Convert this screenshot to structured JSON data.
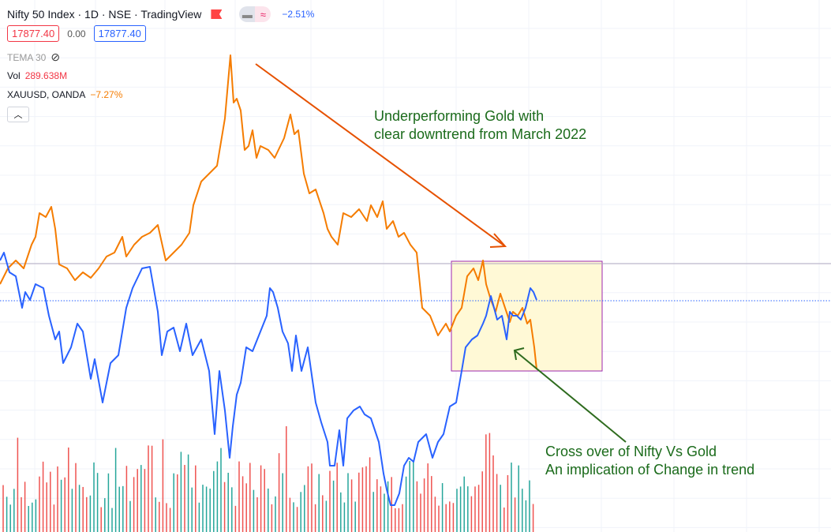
{
  "header": {
    "title": "Nifty 50 Index · 1D · NSE · TradingView",
    "change": "−2.51%",
    "sell_price": "17877.40",
    "spread": "0.00",
    "buy_price": "17877.40"
  },
  "indicators": {
    "tema": "TEMA 30",
    "vol_label": "Vol",
    "vol_value": "289.638M",
    "compare_label": "XAUUSD, OANDA",
    "compare_value": "−7.27%"
  },
  "annotations": {
    "gold_line1": "Underperforming Gold with",
    "gold_line2": "clear downtrend from March 2022",
    "cross_line1": "Cross over of Nifty Vs Gold",
    "cross_line2": "An implication of Change in trend"
  },
  "colors": {
    "nifty": "#2962ff",
    "gold": "#f57c00",
    "vol_up": "#26a69a",
    "vol_down": "#ef5350",
    "annotation": "#1b6b1b",
    "arrow": "#e65100",
    "box_fill": "#fff9d6",
    "box_border": "#9c27b0"
  },
  "chart_data": {
    "type": "line",
    "note": "values are relative change vs last close reference (dotted line = 0)",
    "series": [
      {
        "name": "XAUUSD, OANDA",
        "points": [
          [
            0,
            21
          ],
          [
            10,
            41
          ],
          [
            20,
            51
          ],
          [
            30,
            41
          ],
          [
            40,
            71
          ],
          [
            45,
            81
          ],
          [
            50,
            111
          ],
          [
            58,
            106
          ],
          [
            65,
            119
          ],
          [
            70,
            91
          ],
          [
            75,
            46
          ],
          [
            85,
            41
          ],
          [
            95,
            26
          ],
          [
            105,
            36
          ],
          [
            115,
            29
          ],
          [
            125,
            41
          ],
          [
            135,
            56
          ],
          [
            145,
            61
          ],
          [
            155,
            81
          ],
          [
            160,
            56
          ],
          [
            170,
            71
          ],
          [
            180,
            81
          ],
          [
            190,
            86
          ],
          [
            200,
            96
          ],
          [
            210,
            51
          ],
          [
            220,
            61
          ],
          [
            230,
            71
          ],
          [
            240,
            86
          ],
          [
            245,
            121
          ],
          [
            255,
            151
          ],
          [
            265,
            161
          ],
          [
            275,
            171
          ],
          [
            285,
            231
          ],
          [
            292,
            311
          ],
          [
            296,
            251
          ],
          [
            300,
            256
          ],
          [
            305,
            241
          ],
          [
            310,
            191
          ],
          [
            315,
            196
          ],
          [
            320,
            216
          ],
          [
            325,
            181
          ],
          [
            330,
            196
          ],
          [
            340,
            191
          ],
          [
            348,
            181
          ],
          [
            360,
            206
          ],
          [
            368,
            236
          ],
          [
            373,
            211
          ],
          [
            378,
            216
          ],
          [
            385,
            161
          ],
          [
            392,
            136
          ],
          [
            400,
            141
          ],
          [
            410,
            111
          ],
          [
            415,
            91
          ],
          [
            420,
            81
          ],
          [
            428,
            71
          ],
          [
            435,
            111
          ],
          [
            445,
            106
          ],
          [
            455,
            116
          ],
          [
            465,
            101
          ],
          [
            470,
            121
          ],
          [
            478,
            106
          ],
          [
            485,
            126
          ],
          [
            490,
            91
          ],
          [
            498,
            101
          ],
          [
            505,
            81
          ],
          [
            512,
            86
          ],
          [
            520,
            71
          ],
          [
            528,
            61
          ],
          [
            535,
            -9
          ],
          [
            545,
            -19
          ],
          [
            555,
            -44
          ],
          [
            565,
            -29
          ],
          [
            570,
            -39
          ],
          [
            578,
            -19
          ],
          [
            585,
            -9
          ],
          [
            592,
            31
          ],
          [
            600,
            41
          ],
          [
            606,
            26
          ],
          [
            612,
            51
          ],
          [
            616,
            21
          ],
          [
            622,
            1
          ],
          [
            628,
            -14
          ],
          [
            634,
            9
          ],
          [
            640,
            -9
          ],
          [
            646,
            -27
          ],
          [
            650,
            -14
          ],
          [
            656,
            -19
          ],
          [
            662,
            -9
          ],
          [
            668,
            -29
          ],
          [
            672,
            -24
          ],
          [
            677,
            -59
          ],
          [
            680,
            -87
          ]
        ]
      },
      {
        "name": "Nifty 50 Index",
        "points": [
          [
            0,
            51
          ],
          [
            5,
            61
          ],
          [
            12,
            36
          ],
          [
            20,
            31
          ],
          [
            28,
            -9
          ],
          [
            32,
            11
          ],
          [
            38,
            1
          ],
          [
            45,
            21
          ],
          [
            55,
            16
          ],
          [
            62,
            -19
          ],
          [
            70,
            -49
          ],
          [
            75,
            -39
          ],
          [
            80,
            -79
          ],
          [
            90,
            -59
          ],
          [
            98,
            -29
          ],
          [
            105,
            -39
          ],
          [
            115,
            -99
          ],
          [
            120,
            -74
          ],
          [
            130,
            -129
          ],
          [
            140,
            -79
          ],
          [
            150,
            -69
          ],
          [
            160,
            -9
          ],
          [
            168,
            16
          ],
          [
            180,
            41
          ],
          [
            190,
            43
          ],
          [
            200,
            -14
          ],
          [
            205,
            -69
          ],
          [
            212,
            -39
          ],
          [
            220,
            -34
          ],
          [
            228,
            -64
          ],
          [
            236,
            -29
          ],
          [
            244,
            -69
          ],
          [
            255,
            -49
          ],
          [
            265,
            -89
          ],
          [
            272,
            -169
          ],
          [
            278,
            -89
          ],
          [
            285,
            -139
          ],
          [
            291,
            -199
          ],
          [
            295,
            -159
          ],
          [
            300,
            -119
          ],
          [
            305,
            -104
          ],
          [
            312,
            -59
          ],
          [
            320,
            -64
          ],
          [
            330,
            -39
          ],
          [
            338,
            -19
          ],
          [
            342,
            16
          ],
          [
            346,
            11
          ],
          [
            352,
            -9
          ],
          [
            358,
            -39
          ],
          [
            365,
            -54
          ],
          [
            370,
            -89
          ],
          [
            375,
            -44
          ],
          [
            382,
            -89
          ],
          [
            390,
            -59
          ],
          [
            400,
            -129
          ],
          [
            407,
            -154
          ],
          [
            415,
            -179
          ],
          [
            418,
            -209
          ],
          [
            424,
            -209
          ],
          [
            430,
            -164
          ],
          [
            435,
            -209
          ],
          [
            440,
            -149
          ],
          [
            448,
            -139
          ],
          [
            456,
            -134
          ],
          [
            462,
            -144
          ],
          [
            470,
            -149
          ],
          [
            480,
            -179
          ],
          [
            486,
            -219
          ],
          [
            490,
            -239
          ],
          [
            495,
            -259
          ],
          [
            500,
            -259
          ],
          [
            506,
            -244
          ],
          [
            512,
            -209
          ],
          [
            518,
            -199
          ],
          [
            524,
            -204
          ],
          [
            530,
            -179
          ],
          [
            540,
            -169
          ],
          [
            548,
            -199
          ],
          [
            555,
            -179
          ],
          [
            562,
            -169
          ],
          [
            570,
            -134
          ],
          [
            578,
            -129
          ],
          [
            585,
            -89
          ],
          [
            590,
            -59
          ],
          [
            598,
            -49
          ],
          [
            605,
            -44
          ],
          [
            612,
            -29
          ],
          [
            616,
            -19
          ],
          [
            622,
            6
          ],
          [
            626,
            -9
          ],
          [
            630,
            -24
          ],
          [
            636,
            -19
          ],
          [
            642,
            -49
          ],
          [
            646,
            -14
          ],
          [
            650,
            -19
          ],
          [
            655,
            -19
          ],
          [
            660,
            -24
          ],
          [
            666,
            -9
          ],
          [
            672,
            16
          ],
          [
            676,
            11
          ],
          [
            680,
            1
          ]
        ]
      }
    ]
  }
}
